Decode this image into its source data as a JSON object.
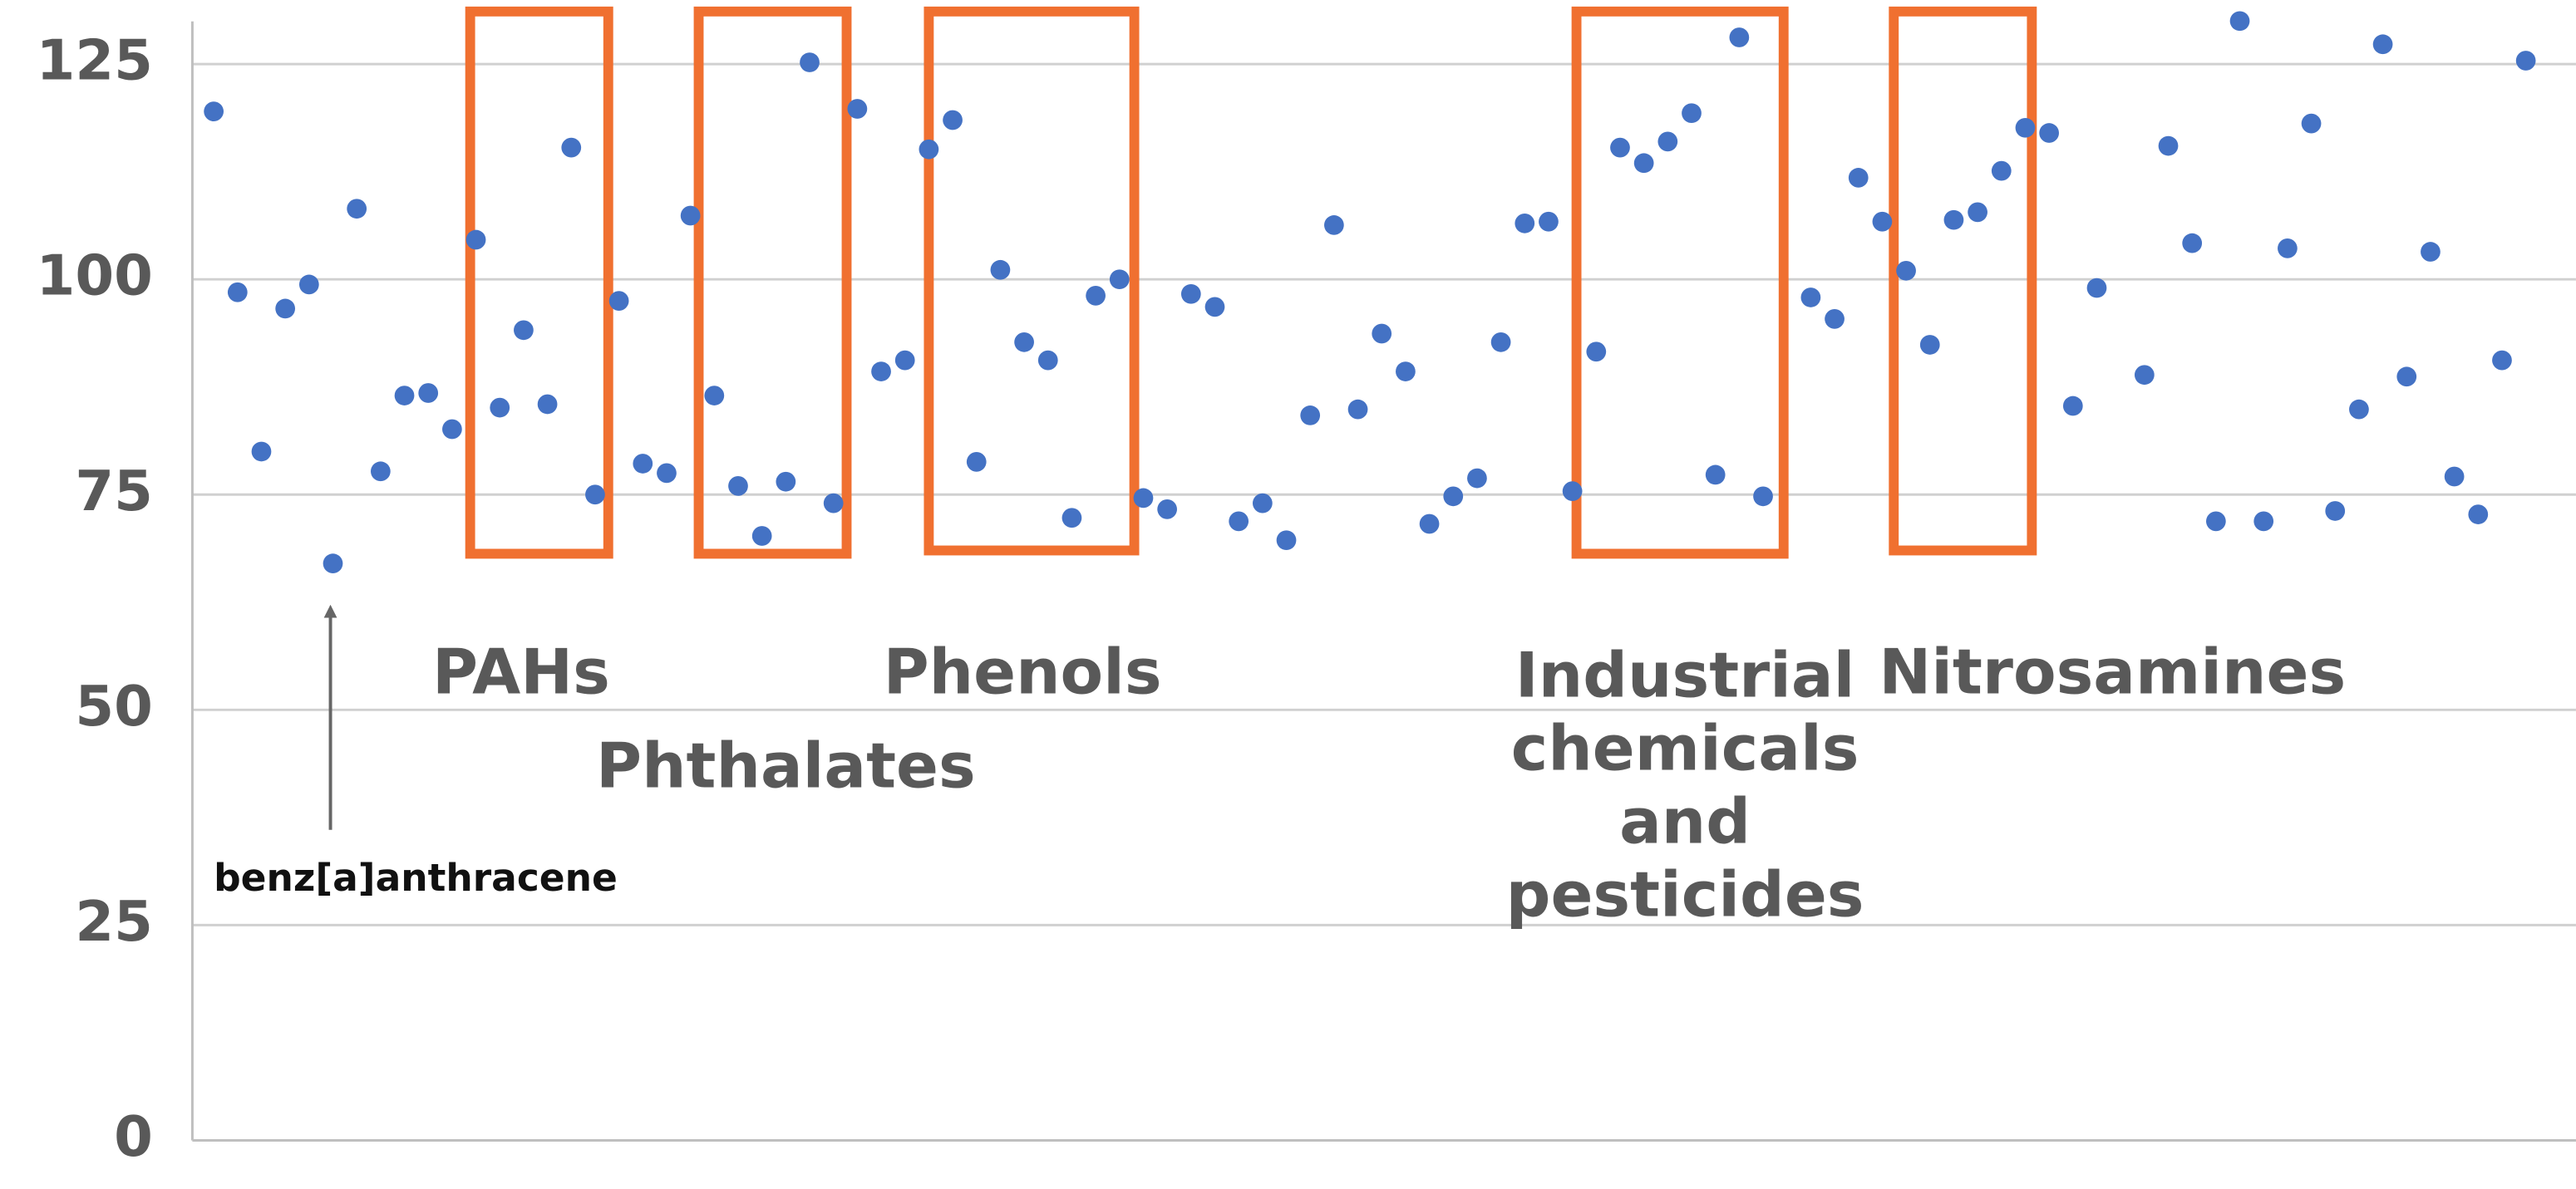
{
  "chart_data": {
    "type": "scatter",
    "color": "#4472c4",
    "x": [
      1,
      2,
      3,
      4,
      5,
      6,
      7,
      8,
      9,
      10,
      11,
      12,
      13,
      14,
      15,
      16,
      17,
      18,
      19,
      20,
      21,
      22,
      23,
      24,
      25,
      26,
      27,
      28,
      29,
      30,
      31,
      32,
      33,
      34,
      35,
      36,
      37,
      38,
      39,
      40,
      41,
      42,
      43,
      44,
      45,
      46,
      47,
      48,
      49,
      50,
      51,
      52,
      53,
      54,
      55,
      56,
      57,
      58,
      59,
      60,
      61,
      62,
      63,
      64,
      65,
      66,
      68,
      69,
      70,
      71,
      72,
      73,
      74,
      75,
      76,
      77,
      78,
      79,
      80,
      82,
      83,
      84,
      85,
      86,
      87,
      88,
      89,
      90,
      91,
      92,
      93,
      94,
      95,
      96,
      97,
      98
    ],
    "values": [
      119.5,
      98.5,
      80,
      96.6,
      99.4,
      67,
      108.2,
      77.7,
      86.5,
      86.8,
      82.6,
      104.6,
      85.1,
      94.1,
      85.5,
      115.3,
      75,
      97.5,
      78.6,
      77.5,
      107.4,
      86.5,
      76,
      70.2,
      76.5,
      125.2,
      74,
      119.8,
      89.3,
      90.6,
      115.1,
      118.5,
      78.8,
      101.1,
      92.7,
      90.6,
      72.3,
      98.1,
      100,
      74.6,
      73.3,
      98.3,
      96.8,
      71.9,
      74,
      69.7,
      84.2,
      106.3,
      84.9,
      93.7,
      89.3,
      71.6,
      74.8,
      76.9,
      92.7,
      106.5,
      106.7,
      75.4,
      91.6,
      115.3,
      113.5,
      116,
      119.3,
      77.3,
      128.1,
      74.8,
      97.9,
      95.4,
      111.8,
      106.7,
      101,
      92.4,
      106.9,
      107.8,
      112.6,
      117.6,
      117,
      85.3,
      99,
      88.9,
      115.5,
      104.2,
      71.9,
      130,
      71.9,
      103.6,
      118.1,
      73.1,
      84.9,
      127.3,
      88.7,
      103.2,
      77.1,
      72.7,
      90.6,
      125.4
    ],
    "xlim": [
      0,
      100
    ],
    "ylim": [
      0,
      130
    ],
    "yticks": [
      0,
      25,
      50,
      75,
      100,
      125
    ],
    "grid": true,
    "annotations": [
      {
        "lines": [
          "PAHs"
        ]
      },
      {
        "lines": [
          "Phthalates"
        ]
      },
      {
        "lines": [
          "Phenols"
        ]
      },
      {
        "lines": [
          "Industrial",
          "chemicals",
          "and",
          "pesticides"
        ]
      },
      {
        "lines": [
          "Nitrosamines"
        ]
      },
      {
        "lines": [
          "benz[a]anthracene"
        ]
      }
    ]
  }
}
